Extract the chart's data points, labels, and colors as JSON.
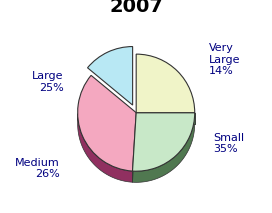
{
  "title": "2007",
  "labels": [
    "Very\nLarge",
    "Small",
    "Medium",
    "Large"
  ],
  "values": [
    14,
    35,
    26,
    25
  ],
  "colors_top": [
    "#b8e8f4",
    "#f4a8c0",
    "#c8e8c8",
    "#f0f4c8"
  ],
  "colors_side": [
    "#6090a8",
    "#903060",
    "#507850",
    "#a0a870"
  ],
  "explode": [
    0.06,
    0.0,
    0.0,
    0.0
  ],
  "startangle": 90,
  "title_fontsize": 14,
  "title_fontweight": "bold",
  "label_fontsize": 8,
  "label_color": "#000080"
}
